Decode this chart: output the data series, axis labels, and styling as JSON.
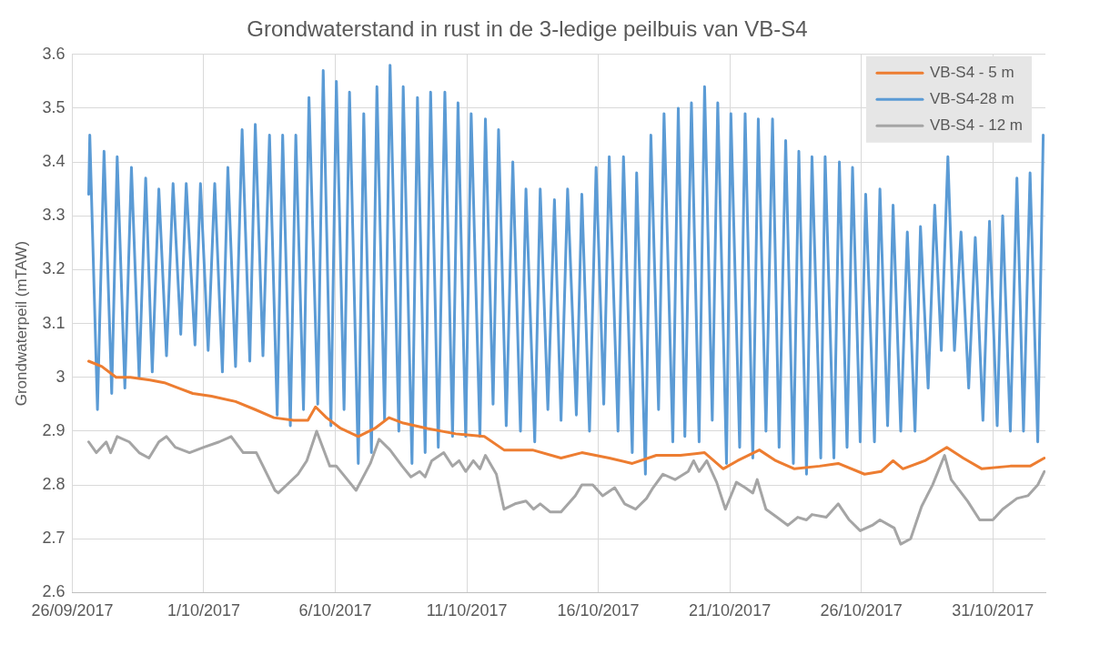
{
  "chart_data": {
    "type": "line",
    "title": "Grondwaterstand in rust in de 3-ledige peilbuis van VB-S4",
    "ylabel": "Grondwaterpeil (mTAW)",
    "xlim": [
      "2017-09-26",
      "2017-11-02"
    ],
    "xticks": [
      {
        "value": "2017-09-26",
        "label": "26/09/2017"
      },
      {
        "value": "2017-10-01",
        "label": "1/10/2017"
      },
      {
        "value": "2017-10-06",
        "label": "6/10/2017"
      },
      {
        "value": "2017-10-11",
        "label": "11/10/2017"
      },
      {
        "value": "2017-10-16",
        "label": "16/10/2017"
      },
      {
        "value": "2017-10-21",
        "label": "21/10/2017"
      },
      {
        "value": "2017-10-26",
        "label": "26/10/2017"
      },
      {
        "value": "2017-10-31",
        "label": "31/10/2017"
      }
    ],
    "ylim": [
      2.6,
      3.6
    ],
    "yticks": [
      2.6,
      2.7,
      2.8,
      2.9,
      3,
      3.1,
      3.2,
      3.3,
      3.4,
      3.5,
      3.6
    ],
    "grid": true,
    "legend": "top right",
    "series": [
      {
        "name": "VB-S4 - 5 m",
        "color": "#ed7d31",
        "x": [
          "2017-09-26T15:00",
          "2017-09-27T03:00",
          "2017-09-27T16:00",
          "2017-09-28T05:00",
          "2017-09-28T23:00",
          "2017-09-29T12:00",
          "2017-09-30T01:00",
          "2017-09-30T14:00",
          "2017-10-01T07:00",
          "2017-10-02T05:00",
          "2017-10-02T23:00",
          "2017-10-03T16:00",
          "2017-10-04T10:00",
          "2017-10-04T23:00",
          "2017-10-05T06:00",
          "2017-10-05T16:00",
          "2017-10-06T05:00",
          "2017-10-06T21:00",
          "2017-10-07T12:00",
          "2017-10-08T01:00",
          "2017-10-08T14:00",
          "2017-10-09T12:00",
          "2017-10-10T14:00",
          "2017-10-11T16:00",
          "2017-10-12T10:00",
          "2017-10-13T12:00",
          "2017-10-14T14:00",
          "2017-10-15T09:00",
          "2017-10-16T10:00",
          "2017-10-17T07:00",
          "2017-10-18T05:00",
          "2017-10-19T03:00",
          "2017-10-20T01:00",
          "2017-10-20T18:00",
          "2017-10-21T07:00",
          "2017-10-22T03:00",
          "2017-10-22T18:00",
          "2017-10-23T11:00",
          "2017-10-24T10:00",
          "2017-10-25T03:00",
          "2017-10-26T03:00",
          "2017-10-26T18:00",
          "2017-10-27T05:00",
          "2017-10-27T14:00",
          "2017-10-28T10:00",
          "2017-10-29T06:00",
          "2017-10-29T21:00",
          "2017-10-30T14:00",
          "2017-10-31T16:00",
          "2017-11-01T10:00",
          "2017-11-01T23:00"
        ],
        "values": [
          3.03,
          3.02,
          3.0,
          3.0,
          2.995,
          2.99,
          2.98,
          2.97,
          2.965,
          2.955,
          2.94,
          2.925,
          2.92,
          2.92,
          2.945,
          2.925,
          2.905,
          2.89,
          2.905,
          2.925,
          2.915,
          2.905,
          2.895,
          2.89,
          2.865,
          2.865,
          2.85,
          2.86,
          2.85,
          2.84,
          2.855,
          2.855,
          2.86,
          2.83,
          2.845,
          2.865,
          2.845,
          2.83,
          2.835,
          2.84,
          2.82,
          2.825,
          2.845,
          2.83,
          2.845,
          2.87,
          2.85,
          2.83,
          2.835,
          2.835,
          2.85
        ]
      },
      {
        "name": "VB-S4-28 m",
        "color": "#5b9bd5",
        "x": [
          "2017-09-26T15:00",
          "2017-09-26T16:00",
          "2017-09-26T23:00",
          "2017-09-27T05:00",
          "2017-09-27T12:00",
          "2017-09-27T17:00",
          "2017-09-28T00:00",
          "2017-09-28T06:00",
          "2017-09-28T13:00",
          "2017-09-28T19:00",
          "2017-09-29T01:00",
          "2017-09-29T07:00",
          "2017-09-29T14:00",
          "2017-09-29T20:00",
          "2017-09-30T03:00",
          "2017-09-30T08:00",
          "2017-09-30T16:00",
          "2017-09-30T21:00",
          "2017-10-01T04:00",
          "2017-10-01T10:00",
          "2017-10-01T17:00",
          "2017-10-01T22:00",
          "2017-10-02T05:00",
          "2017-10-02T11:00",
          "2017-10-02T18:00",
          "2017-10-02T23:00",
          "2017-10-03T06:00",
          "2017-10-03T12:00",
          "2017-10-03T19:00",
          "2017-10-04T00:00",
          "2017-10-04T07:00",
          "2017-10-04T12:00",
          "2017-10-04T19:00",
          "2017-10-05T00:00",
          "2017-10-05T08:00",
          "2017-10-05T13:00",
          "2017-10-05T20:00",
          "2017-10-06T01:00",
          "2017-10-06T08:00",
          "2017-10-06T13:00",
          "2017-10-06T21:00",
          "2017-10-07T02:00",
          "2017-10-07T09:00",
          "2017-10-07T14:00",
          "2017-10-07T21:00",
          "2017-10-08T02:00",
          "2017-10-08T10:00",
          "2017-10-08T14:00",
          "2017-10-08T22:00",
          "2017-10-09T03:00",
          "2017-10-09T10:00",
          "2017-10-09T15:00",
          "2017-10-09T22:00",
          "2017-10-10T04:00",
          "2017-10-10T11:00",
          "2017-10-10T16:00",
          "2017-10-10T23:00",
          "2017-10-11T04:00",
          "2017-10-11T12:00",
          "2017-10-11T17:00",
          "2017-10-12T00:00",
          "2017-10-12T05:00",
          "2017-10-12T12:00",
          "2017-10-12T18:00",
          "2017-10-13T01:00",
          "2017-10-13T06:00",
          "2017-10-13T14:00",
          "2017-10-13T19:00",
          "2017-10-14T02:00",
          "2017-10-14T08:00",
          "2017-10-14T14:00",
          "2017-10-14T20:00",
          "2017-10-15T04:00",
          "2017-10-15T09:00",
          "2017-10-15T16:00",
          "2017-10-15T22:00",
          "2017-10-16T05:00",
          "2017-10-16T10:00",
          "2017-10-16T18:00",
          "2017-10-16T23:00",
          "2017-10-17T07:00",
          "2017-10-17T11:00",
          "2017-10-17T19:00",
          "2017-10-18T00:00",
          "2017-10-18T07:00",
          "2017-10-18T12:00",
          "2017-10-18T20:00",
          "2017-10-19T01:00",
          "2017-10-19T07:00",
          "2017-10-19T13:00",
          "2017-10-19T20:00",
          "2017-10-20T01:00",
          "2017-10-20T08:00",
          "2017-10-20T13:00",
          "2017-10-20T21:00",
          "2017-10-21T01:00",
          "2017-10-21T09:00",
          "2017-10-21T14:00",
          "2017-10-21T21:00",
          "2017-10-22T02:00",
          "2017-10-22T09:00",
          "2017-10-22T15:00",
          "2017-10-22T21:00",
          "2017-10-23T03:00",
          "2017-10-23T10:00",
          "2017-10-23T15:00",
          "2017-10-23T22:00",
          "2017-10-24T03:00",
          "2017-10-24T11:00",
          "2017-10-24T15:00",
          "2017-10-24T23:00",
          "2017-10-25T04:00",
          "2017-10-25T11:00",
          "2017-10-25T16:00",
          "2017-10-25T23:00",
          "2017-10-26T04:00",
          "2017-10-26T12:00",
          "2017-10-26T17:00",
          "2017-10-27T00:00",
          "2017-10-27T05:00",
          "2017-10-27T12:00",
          "2017-10-27T18:00",
          "2017-10-28T01:00",
          "2017-10-28T06:00",
          "2017-10-28T13:00",
          "2017-10-28T19:00",
          "2017-10-29T01:00",
          "2017-10-29T07:00",
          "2017-10-29T13:00",
          "2017-10-29T19:00",
          "2017-10-30T02:00",
          "2017-10-30T08:00",
          "2017-10-30T15:00",
          "2017-10-30T21:00",
          "2017-10-31T04:00",
          "2017-10-31T09:00",
          "2017-10-31T16:00",
          "2017-10-31T22:00",
          "2017-11-01T04:00",
          "2017-11-01T10:00",
          "2017-11-01T17:00",
          "2017-11-01T22:00"
        ],
        "values": [
          3.34,
          3.45,
          2.94,
          3.42,
          2.97,
          3.41,
          2.98,
          3.39,
          3.0,
          3.37,
          3.01,
          3.35,
          3.04,
          3.36,
          3.08,
          3.36,
          3.06,
          3.36,
          3.05,
          3.36,
          3.01,
          3.39,
          3.02,
          3.46,
          3.03,
          3.47,
          3.04,
          3.45,
          2.93,
          3.45,
          2.91,
          3.45,
          2.94,
          3.52,
          2.95,
          3.57,
          2.91,
          3.55,
          2.94,
          3.53,
          2.84,
          3.49,
          2.86,
          3.54,
          2.92,
          3.58,
          2.9,
          3.54,
          2.84,
          3.52,
          2.86,
          3.53,
          2.87,
          3.53,
          2.89,
          3.51,
          2.89,
          3.49,
          2.89,
          3.48,
          2.95,
          3.46,
          2.91,
          3.4,
          2.9,
          3.35,
          2.88,
          3.35,
          2.94,
          3.33,
          2.92,
          3.35,
          2.93,
          3.34,
          2.9,
          3.39,
          2.95,
          3.41,
          2.9,
          3.41,
          2.86,
          3.38,
          2.82,
          3.45,
          2.94,
          3.49,
          2.88,
          3.5,
          2.89,
          3.51,
          2.88,
          3.54,
          2.92,
          3.51,
          2.84,
          3.49,
          2.87,
          3.49,
          2.85,
          3.48,
          2.9,
          3.48,
          2.87,
          3.44,
          2.84,
          3.42,
          2.82,
          3.41,
          2.85,
          3.41,
          2.85,
          3.4,
          2.87,
          3.39,
          2.88,
          3.34,
          2.88,
          3.35,
          2.91,
          3.32,
          2.9,
          3.27,
          2.9,
          3.28,
          2.98,
          3.32,
          3.05,
          3.41,
          3.05,
          3.27,
          2.98,
          3.26,
          2.92,
          3.29,
          2.91,
          3.3,
          2.9,
          3.37,
          2.9,
          3.38,
          2.88,
          3.45
        ]
      },
      {
        "name": "VB-S4 - 12 m",
        "color": "#a5a5a5",
        "x": [
          "2017-09-26T15:00",
          "2017-09-26T22:00",
          "2017-09-27T07:00",
          "2017-09-27T11:00",
          "2017-09-27T17:00",
          "2017-09-28T04:00",
          "2017-09-28T13:00",
          "2017-09-28T22:00",
          "2017-09-29T07:00",
          "2017-09-29T14:00",
          "2017-09-29T22:00",
          "2017-09-30T11:00",
          "2017-10-01T00:00",
          "2017-10-01T14:00",
          "2017-10-02T01:00",
          "2017-10-02T12:00",
          "2017-10-03T00:00",
          "2017-10-03T17:00",
          "2017-10-03T20:00",
          "2017-10-04T14:00",
          "2017-10-04T22:00",
          "2017-10-05T07:00",
          "2017-10-05T19:00",
          "2017-10-06T01:00",
          "2017-10-06T19:00",
          "2017-10-07T08:00",
          "2017-10-07T16:00",
          "2017-10-08T02:00",
          "2017-10-08T13:00",
          "2017-10-08T21:00",
          "2017-10-09T05:00",
          "2017-10-09T10:00",
          "2017-10-09T16:00",
          "2017-10-10T03:00",
          "2017-10-10T11:00",
          "2017-10-10T17:00",
          "2017-10-10T23:00",
          "2017-10-11T06:00",
          "2017-10-11T12:00",
          "2017-10-11T17:00",
          "2017-10-12T03:00",
          "2017-10-12T10:00",
          "2017-10-12T20:00",
          "2017-10-13T06:00",
          "2017-10-13T13:00",
          "2017-10-13T19:00",
          "2017-10-14T04:00",
          "2017-10-14T14:00",
          "2017-10-15T03:00",
          "2017-10-15T09:00",
          "2017-10-15T19:00",
          "2017-10-16T04:00",
          "2017-10-16T15:00",
          "2017-10-17T00:00",
          "2017-10-17T10:00",
          "2017-10-17T20:00",
          "2017-10-18T02:00",
          "2017-10-18T11:00",
          "2017-10-18T22:00",
          "2017-10-19T10:00",
          "2017-10-19T15:00",
          "2017-10-19T20:00",
          "2017-10-20T03:00",
          "2017-10-20T12:00",
          "2017-10-20T20:00",
          "2017-10-21T06:00",
          "2017-10-21T14:00",
          "2017-10-21T21:00",
          "2017-10-22T01:00",
          "2017-10-22T09:00",
          "2017-10-22T19:00",
          "2017-10-23T05:00",
          "2017-10-23T14:00",
          "2017-10-23T22:00",
          "2017-10-24T03:00",
          "2017-10-24T16:00",
          "2017-10-25T03:00",
          "2017-10-25T13:00",
          "2017-10-25T23:00",
          "2017-10-26T10:00",
          "2017-10-26T17:00",
          "2017-10-27T06:00",
          "2017-10-27T12:00",
          "2017-10-27T21:00",
          "2017-10-28T07:00",
          "2017-10-28T17:00",
          "2017-10-29T04:00",
          "2017-10-29T10:00",
          "2017-10-30T01:00",
          "2017-10-30T12:00",
          "2017-10-31T00:00",
          "2017-10-31T09:00",
          "2017-10-31T22:00",
          "2017-11-01T08:00",
          "2017-11-01T17:00",
          "2017-11-01T23:00"
        ],
        "values": [
          2.88,
          2.86,
          2.88,
          2.86,
          2.89,
          2.88,
          2.86,
          2.85,
          2.88,
          2.89,
          2.87,
          2.86,
          2.87,
          2.88,
          2.89,
          2.86,
          2.86,
          2.79,
          2.785,
          2.82,
          2.845,
          2.9,
          2.835,
          2.835,
          2.79,
          2.84,
          2.885,
          2.865,
          2.835,
          2.815,
          2.825,
          2.815,
          2.845,
          2.86,
          2.835,
          2.845,
          2.825,
          2.845,
          2.83,
          2.855,
          2.82,
          2.755,
          2.765,
          2.77,
          2.755,
          2.765,
          2.75,
          2.75,
          2.78,
          2.8,
          2.8,
          2.78,
          2.795,
          2.765,
          2.755,
          2.775,
          2.795,
          2.82,
          2.81,
          2.825,
          2.845,
          2.825,
          2.845,
          2.805,
          2.755,
          2.805,
          2.795,
          2.785,
          2.81,
          2.755,
          2.74,
          2.725,
          2.74,
          2.735,
          2.745,
          2.74,
          2.765,
          2.735,
          2.715,
          2.725,
          2.735,
          2.72,
          2.69,
          2.7,
          2.76,
          2.8,
          2.855,
          2.81,
          2.77,
          2.735,
          2.735,
          2.755,
          2.775,
          2.78,
          2.8,
          2.825
        ]
      }
    ]
  }
}
